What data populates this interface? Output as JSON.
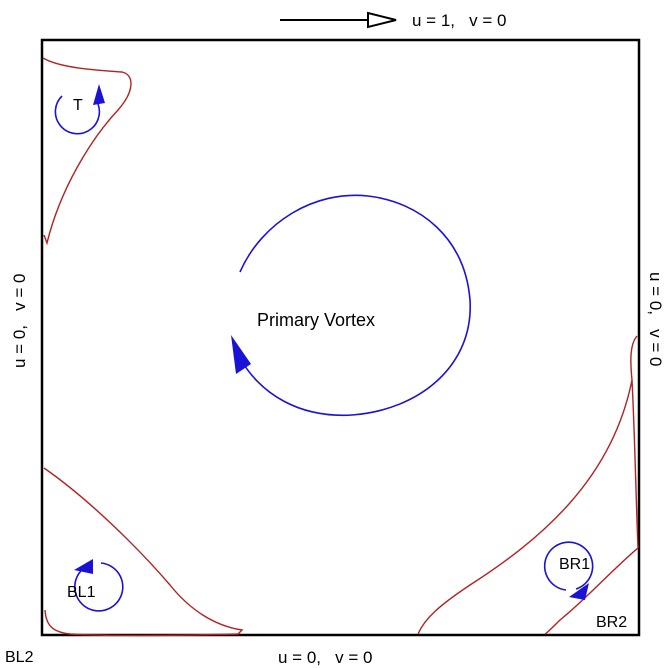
{
  "diagram": {
    "boundaries": {
      "top": "u = 1,   v = 0",
      "bottom": "u = 0,   v = 0",
      "left": "u = 0,   v = 0",
      "right": "u = 0,   v = 0"
    },
    "vortices": {
      "primary": "Primary Vortex",
      "top_left": "T",
      "bottom_left_1": "BL1",
      "bottom_left_2": "BL2",
      "bottom_right_1": "BR1",
      "bottom_right_2": "BR2"
    },
    "colors": {
      "frame": "#000000",
      "separatrix": "#b22222",
      "streamline": "#1a12d6",
      "text": "#000000"
    }
  }
}
